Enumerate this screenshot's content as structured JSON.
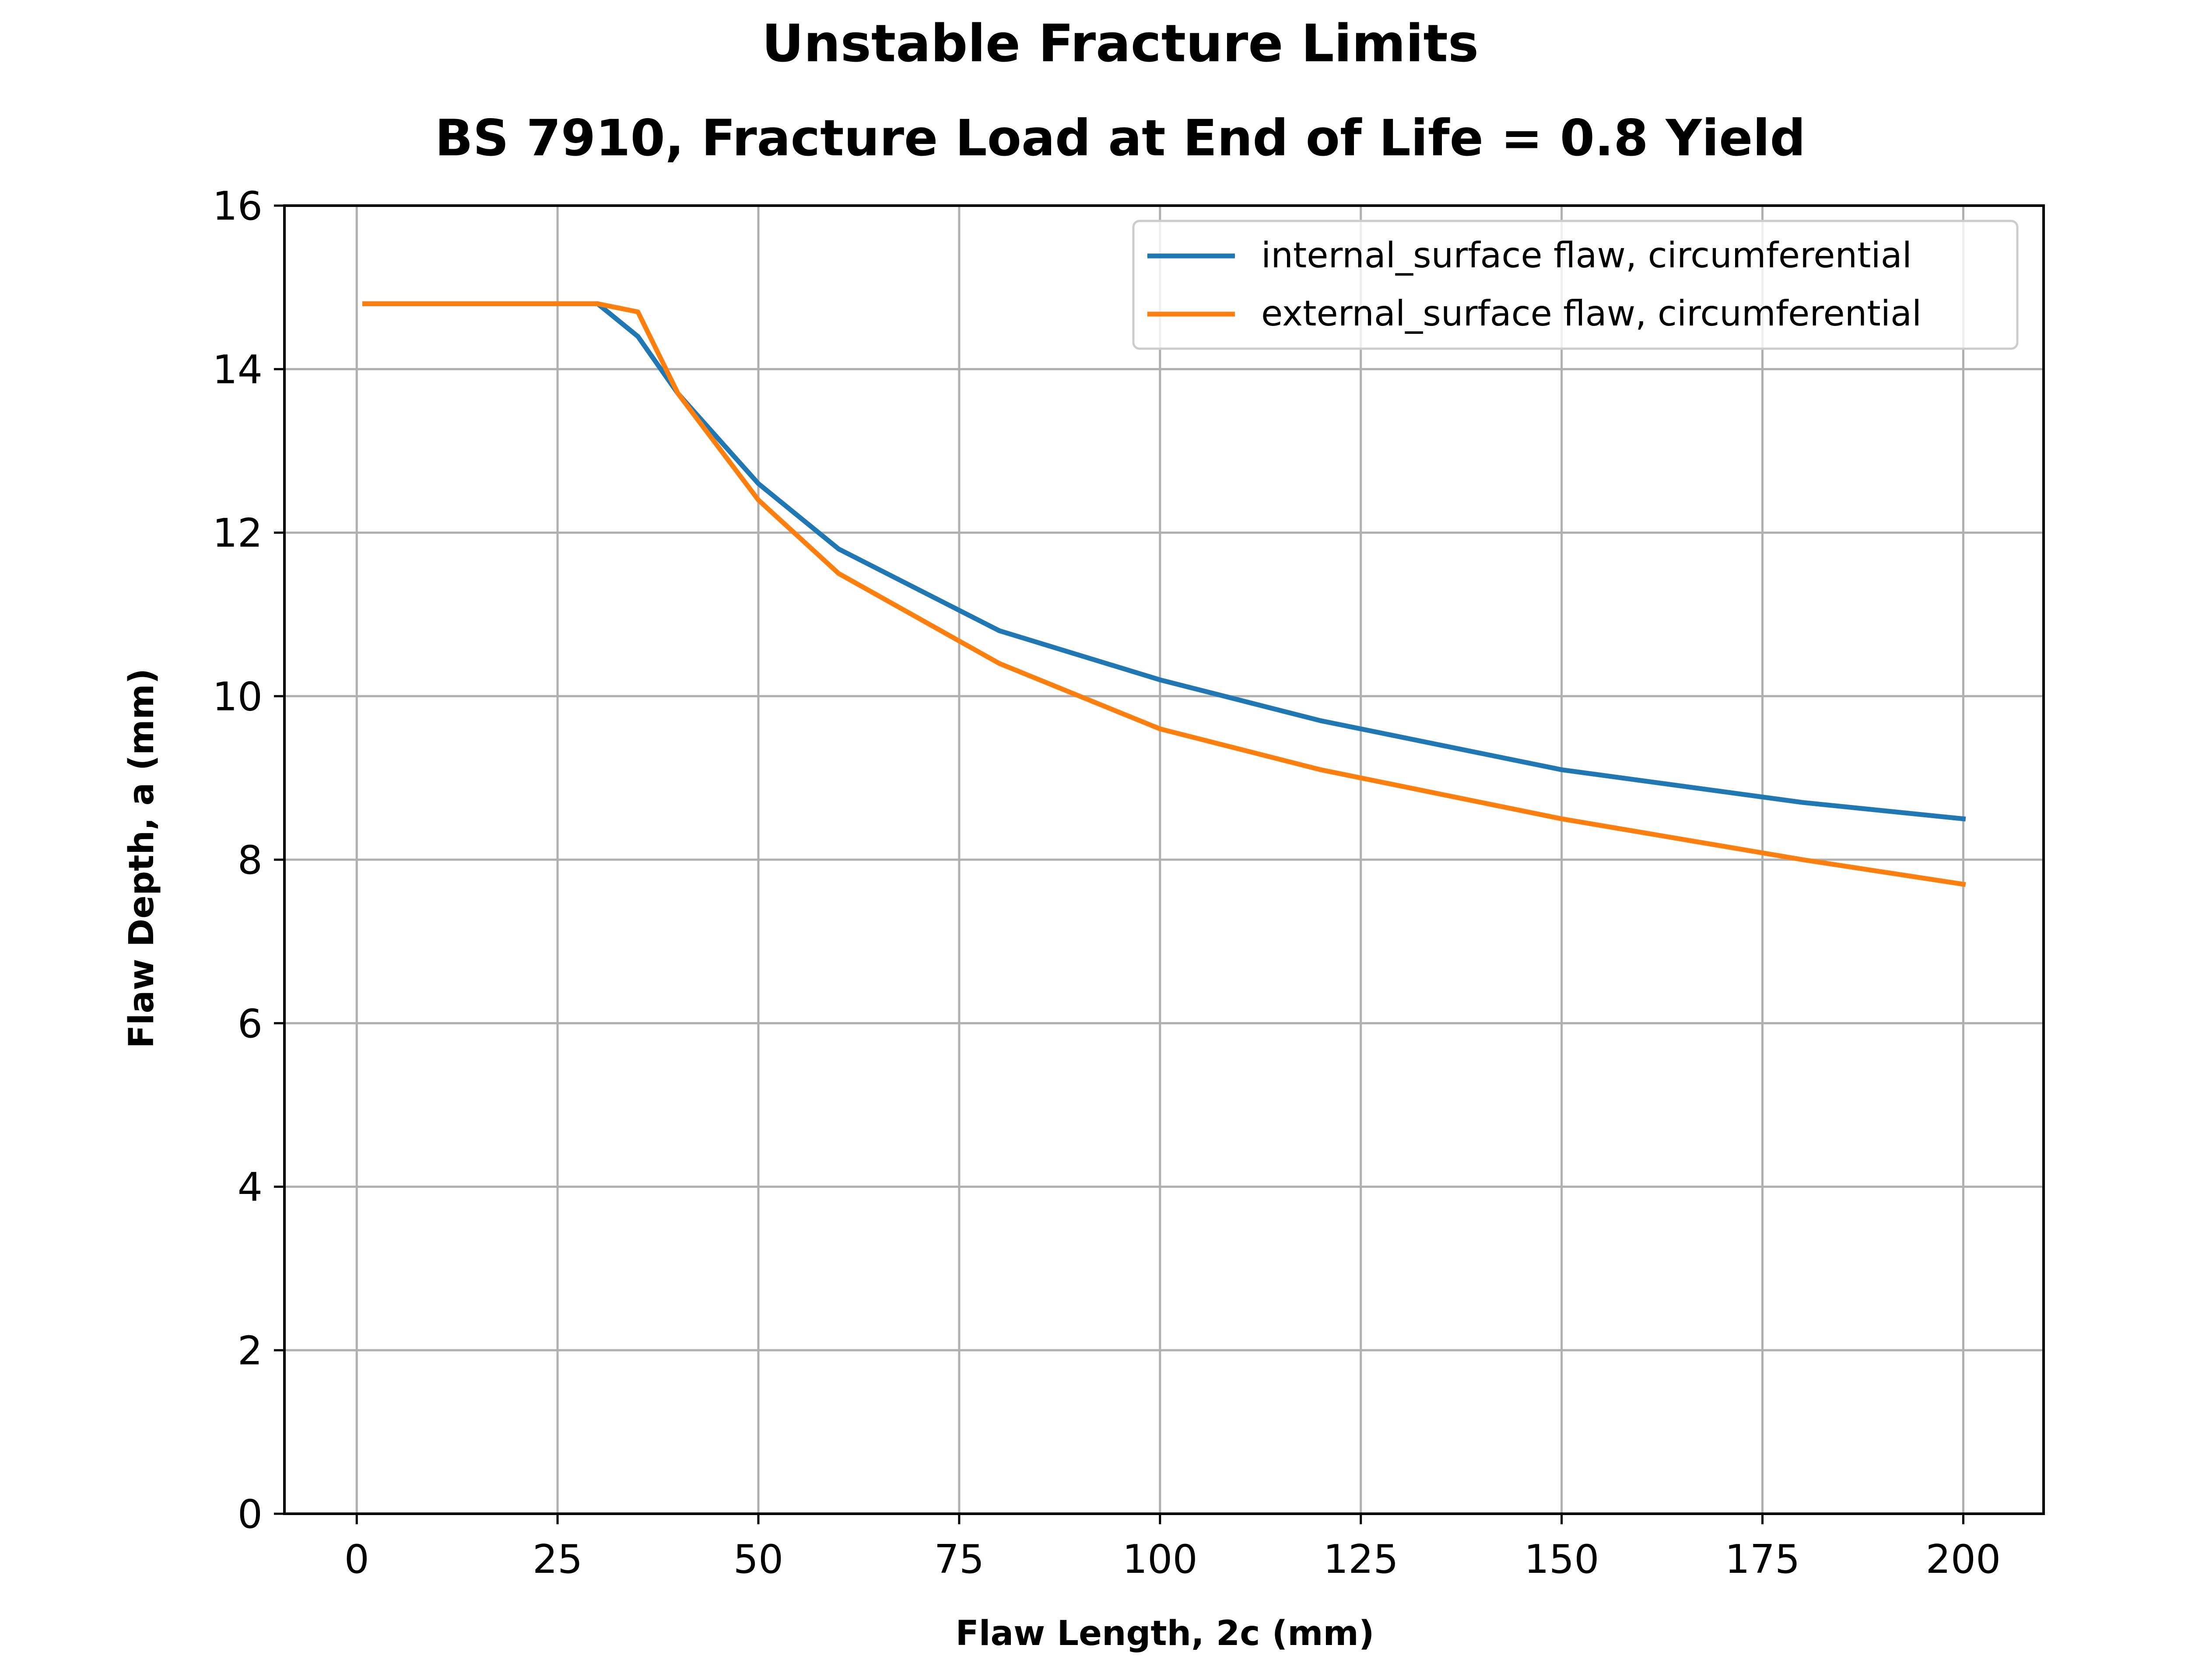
{
  "chart_data": {
    "type": "line",
    "title": "Unstable Fracture Limits",
    "subtitle": "BS 7910, Fracture Load at End of Life = 0.8 Yield",
    "xlabel": "Flaw Length, 2c (mm)",
    "ylabel": "Flaw Depth, a (mm)",
    "xlim": [
      -9,
      210
    ],
    "ylim": [
      0,
      16
    ],
    "xticks": [
      0,
      25,
      50,
      75,
      100,
      125,
      150,
      175,
      200
    ],
    "yticks": [
      0,
      2,
      4,
      6,
      8,
      10,
      12,
      14,
      16
    ],
    "grid": true,
    "legend_position": "top-right",
    "series": [
      {
        "name": "internal_surface flaw, circumferential",
        "color": "#1f77b4",
        "x": [
          1,
          5,
          10,
          20,
          30,
          35,
          40,
          50,
          60,
          80,
          100,
          120,
          150,
          180,
          200
        ],
        "y": [
          14.8,
          14.8,
          14.8,
          14.8,
          14.8,
          14.4,
          13.7,
          12.6,
          11.8,
          10.8,
          10.2,
          9.7,
          9.1,
          8.7,
          8.5
        ]
      },
      {
        "name": "external_surface flaw, circumferential",
        "color": "#ff7f0e",
        "x": [
          1,
          5,
          10,
          20,
          30,
          35,
          40,
          50,
          60,
          80,
          100,
          120,
          150,
          180,
          200
        ],
        "y": [
          14.8,
          14.8,
          14.8,
          14.8,
          14.8,
          14.7,
          13.7,
          12.4,
          11.5,
          10.4,
          9.6,
          9.1,
          8.5,
          8.0,
          7.7
        ]
      }
    ]
  }
}
